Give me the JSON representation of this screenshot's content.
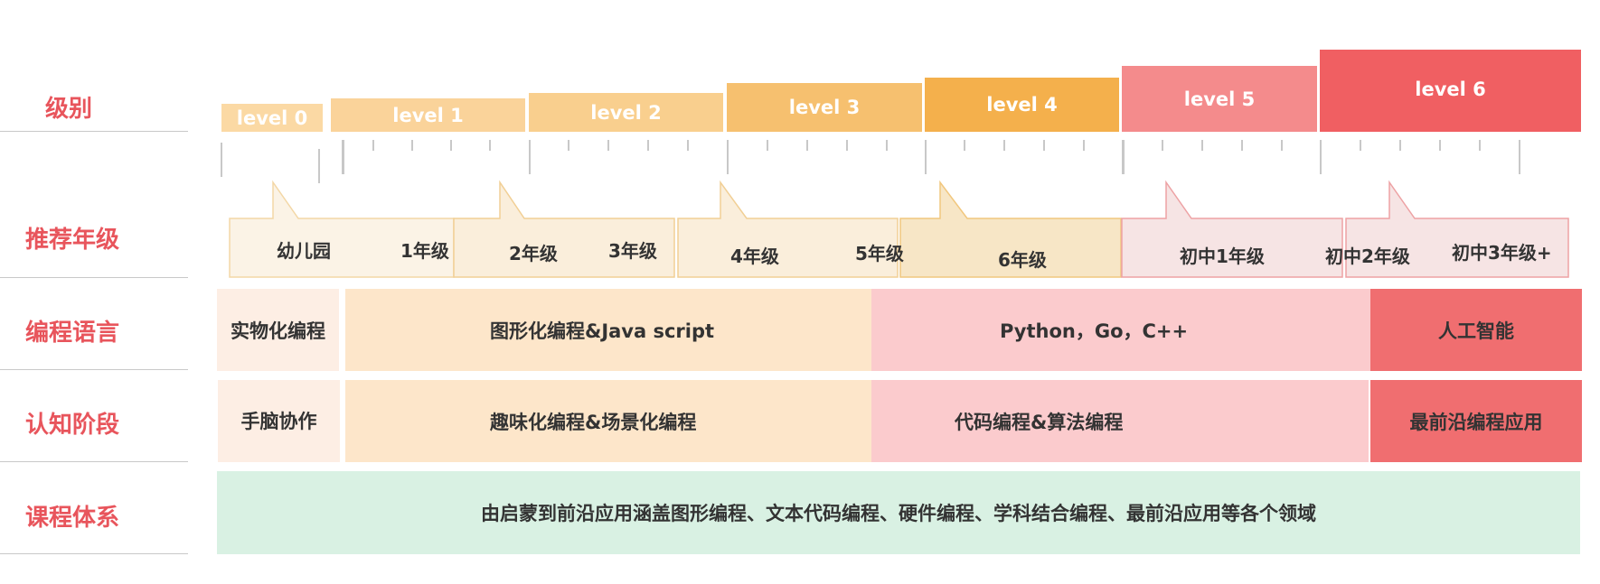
{
  "rows": {
    "level": "级别",
    "grade": "推荐年级",
    "language": "编程语言",
    "cognition": "认知阶段",
    "curriculum": "课程体系"
  },
  "levels": [
    "level 0",
    "level 1",
    "level 2",
    "level 3",
    "level 4",
    "level 5",
    "level 6"
  ],
  "grades": [
    "幼儿园",
    "1年级",
    "2年级",
    "3年级",
    "4年级",
    "5年级",
    "6年级",
    "初中1年级",
    "初中2年级",
    "初中3年级+"
  ],
  "languages": [
    "实物化编程",
    "图形化编程&Java script",
    "Python，Go，C++",
    "人工智能"
  ],
  "stages": [
    "手脑协作",
    "趣味化编程&场景化编程",
    "代码编程&算法编程",
    "最前沿编程应用"
  ],
  "curriculum": "由启蒙到前沿应用涵盖图形编程、文本代码编程、硬件编程、学科结合编程、最前沿应用等各个领域",
  "colors": {
    "label_red": "#e8555c",
    "level_0": "#fbd9a4",
    "level_1": "#fad39a",
    "level_2": "#f9cf8e",
    "level_3": "#f6c06f",
    "level_4": "#f4b04c",
    "level_5": "#f48b8c",
    "level_6": "#f05f62",
    "peach": "#fde6ca",
    "pink": "#fbcbcd",
    "red": "#f06e70",
    "mint": "#d9f1e3"
  }
}
